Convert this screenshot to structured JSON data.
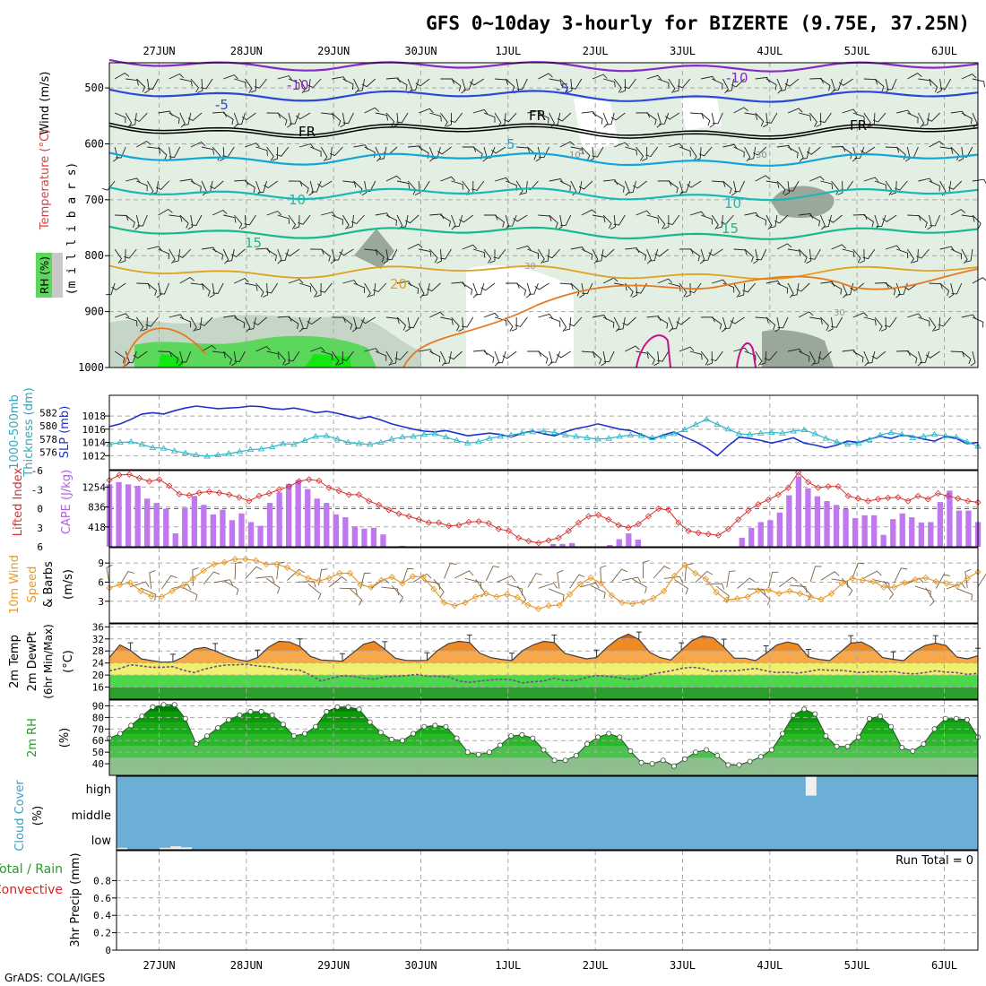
{
  "title": "GFS 0~10day 3-hourly for BIZERTE (9.75E, 37.25N)",
  "footer": "GrADS: COLA/IGES",
  "colors": {
    "grid": "#a8a8a8",
    "rh_light": "#e4efe4",
    "rh_mid": "#c6d6c6",
    "rh_dark": "#9aa89a",
    "rh_green": "#5bd75b",
    "rh_bright": "#14e614",
    "t_violet": "#8a28c8",
    "t_blue": "#2c48d8",
    "t_fr": "#000000",
    "t_cyan": "#12a6d8",
    "t_teal": "#1ab8b4",
    "t_green": "#18b88c",
    "t_gold": "#e0a020",
    "t_orange": "#e87820",
    "t_magenta": "#c8108c",
    "slp": "#1c32d0",
    "thickness": "#30b8c8",
    "lifted": "#d83030",
    "cape": "#c078f0",
    "wind_speed": "#e69a2e",
    "wind_barb": "#7a6040",
    "temp_line": "#404040",
    "dewpt": "#7a4a8a",
    "cloud_bg": "#6baed6",
    "cloud_block": "#f0f0f0"
  },
  "x_axis": {
    "dates": [
      "27JUN",
      "28JUN",
      "29JUN",
      "30JUN",
      "1JUL",
      "2JUL",
      "3JUL",
      "4JUL",
      "5JUL",
      "6JUL"
    ],
    "steps": 80
  },
  "panels": {
    "sounding": {
      "labels": [
        "Wind (m/s)",
        "Temperature (°C)",
        "(m i l l i b a r s)",
        "RH (%)"
      ],
      "y_ticks": [
        "500",
        "600",
        "700",
        "800",
        "900",
        "1000"
      ],
      "contour_labels": [
        "-10",
        "-10",
        "-5",
        "-5",
        "FR",
        "FR",
        "FR",
        "5",
        "5",
        "10",
        "10",
        "15",
        "15",
        "20",
        "10",
        "30",
        "30",
        "30"
      ]
    },
    "slp_thick": {
      "labels": [
        "1000-500mb",
        "Thickness (dm)",
        "SLP (mb)"
      ],
      "thickness_ticks": [
        "582",
        "580",
        "578",
        "576"
      ],
      "slp_ticks": [
        "1018",
        "1016",
        "1014",
        "1012"
      ]
    },
    "cape_li": {
      "labels": [
        "Lifted Index",
        "CAPE (J/kg)"
      ],
      "li_ticks": [
        "-6",
        "-3",
        "0",
        "3",
        "6"
      ],
      "cape_ticks": [
        "1254",
        "836",
        "418"
      ]
    },
    "wind10": {
      "labels": [
        "10m Wind",
        "Speed",
        "& Barbs",
        "(m/s)"
      ],
      "y_ticks": [
        "9",
        "6",
        "3"
      ]
    },
    "temp2m": {
      "labels": [
        "2m Temp",
        "2m DewPt",
        "(6hr Min/Max)",
        "(°C)"
      ],
      "y_ticks": [
        "36",
        "32",
        "28",
        "24",
        "20",
        "16"
      ]
    },
    "rh2m": {
      "labels": [
        "2m RH",
        "(%)"
      ],
      "y_ticks": [
        "90",
        "80",
        "70",
        "60",
        "50",
        "40"
      ]
    },
    "cloud": {
      "labels": [
        "Cloud Cover",
        "(%)"
      ],
      "y_ticks": [
        "high",
        "middle",
        "low"
      ]
    },
    "precip": {
      "labels": [
        "Total / Rain",
        "Convective",
        "3hr Precip (mm)"
      ],
      "y_ticks": [
        "0.8",
        "0.6",
        "0.4",
        "0.2",
        "0"
      ],
      "run_total": "Run Total = 0"
    }
  },
  "chart_data": [
    {
      "type": "line",
      "title": "1000-500mb Thickness (dm) / SLP (mb)",
      "series": [
        {
          "name": "SLP (mb)",
          "unit": "mb",
          "values": [
            1016.4,
            1016.8,
            1017.5,
            1018.3,
            1018.5,
            1018.3,
            1018.8,
            1019.2,
            1019.5,
            1019.3,
            1019.1,
            1019.2,
            1019.3,
            1019.5,
            1019.4,
            1019.1,
            1019.0,
            1019.2,
            1018.9,
            1018.5,
            1018.7,
            1018.4,
            1018.0,
            1017.6,
            1017.9,
            1017.4,
            1016.8,
            1016.4,
            1016.0,
            1015.7,
            1015.6,
            1015.8,
            1015.4,
            1015.0,
            1015.2,
            1015.4,
            1015.2,
            1014.8,
            1015.4,
            1015.7,
            1015.3,
            1015.0,
            1015.6,
            1016.1,
            1016.4,
            1016.8,
            1016.4,
            1016.0,
            1015.8,
            1015.2,
            1014.5,
            1015.1,
            1015.6,
            1014.8,
            1014.1,
            1013.2,
            1012.0,
            1013.5,
            1014.8,
            1014.6,
            1014.3,
            1013.9,
            1014.3,
            1014.7,
            1013.9,
            1013.6,
            1013.2,
            1013.6,
            1014.2,
            1014.0,
            1014.5,
            1014.9,
            1014.6,
            1015.1,
            1014.9,
            1014.5,
            1014.2,
            1014.9,
            1014.6,
            1013.8,
            1014.0
          ]
        },
        {
          "name": "1000-500mb Thickness (dm)",
          "unit": "dm",
          "values": [
            577.2,
            577.5,
            577.6,
            577.2,
            576.7,
            576.6,
            576.2,
            575.9,
            575.6,
            575.4,
            575.6,
            575.8,
            576.1,
            576.4,
            576.5,
            576.8,
            577.3,
            577.2,
            577.8,
            578.4,
            578.5,
            578.0,
            577.5,
            577.3,
            577.2,
            577.5,
            578.0,
            578.3,
            578.4,
            578.7,
            578.8,
            578.3,
            577.8,
            577.4,
            577.6,
            578.1,
            578.4,
            578.6,
            578.9,
            579.1,
            579.2,
            579.0,
            578.6,
            578.4,
            578.2,
            578.0,
            578.1,
            578.4,
            578.6,
            578.5,
            578.2,
            578.4,
            578.8,
            579.4,
            580.2,
            581.0,
            580.2,
            579.5,
            578.8,
            578.7,
            578.9,
            579.0,
            578.9,
            579.2,
            579.4,
            578.8,
            578.1,
            577.6,
            577.2,
            577.4,
            577.9,
            578.6,
            579.0,
            578.7,
            578.2,
            578.4,
            578.7,
            578.5,
            578.3,
            577.6,
            576.9
          ]
        }
      ]
    },
    {
      "type": "bar",
      "title": "Lifted Index / CAPE (J/kg)",
      "series": [
        {
          "name": "CAPE (J/kg)",
          "unit": "J/kg",
          "values": [
            1310,
            1360,
            1310,
            1280,
            1010,
            920,
            800,
            280,
            820,
            1070,
            880,
            680,
            780,
            560,
            700,
            520,
            440,
            920,
            1140,
            1320,
            1400,
            1210,
            1010,
            920,
            680,
            620,
            430,
            380,
            400,
            260,
            0,
            20,
            0,
            0,
            0,
            0,
            0,
            0,
            0,
            0,
            0,
            0,
            0,
            0,
            0,
            0,
            0,
            60,
            60,
            80,
            0,
            0,
            0,
            40,
            160,
            280,
            150,
            0,
            0,
            0,
            0,
            0,
            0,
            0,
            0,
            0,
            0,
            190,
            400,
            520,
            560,
            720,
            1080,
            1480,
            1230,
            1060,
            960,
            880,
            790,
            600,
            660,
            660,
            250,
            580,
            700,
            620,
            510,
            520,
            940,
            1180,
            760,
            760,
            520
          ]
        },
        {
          "name": "Lifted Index",
          "unit": "",
          "values": [
            -4.5,
            -5.3,
            -5.4,
            -4.8,
            -4.3,
            -4.6,
            -3.6,
            -2.3,
            -2.1,
            -2.5,
            -2.7,
            -2.5,
            -2.2,
            -1.8,
            -1.2,
            -2.0,
            -2.4,
            -3.0,
            -3.5,
            -4.3,
            -4.6,
            -4.4,
            -3.3,
            -2.8,
            -2.2,
            -2.2,
            -1.2,
            -0.6,
            0.2,
            0.8,
            1.2,
            1.7,
            2.2,
            2.2,
            2.7,
            2.6,
            2.1,
            2.0,
            2.3,
            3.2,
            3.5,
            4.6,
            5.1,
            5.4,
            5.0,
            4.6,
            3.5,
            2.2,
            1.2,
            1.0,
            1.7,
            2.6,
            3.0,
            2.4,
            1.2,
            0,
            0.2,
            2.2,
            3.5,
            3.8,
            4.0,
            4.2,
            3.2,
            1.7,
            0.3,
            -0.7,
            -1.4,
            -2.2,
            -3.3,
            -5.7,
            -4.2,
            -3.3,
            -3.5,
            -3.5,
            -2.0,
            -1.6,
            -1.2,
            -1.5,
            -1.7,
            -1.8,
            -1.2,
            -2.0,
            -1.5,
            -2.4,
            -2.0,
            -1.6,
            -1.2,
            -1.0
          ]
        }
      ]
    },
    {
      "type": "line",
      "title": "10m Wind Speed & Barbs (m/s)",
      "series": [
        {
          "name": "Speed",
          "unit": "m/s",
          "values": [
            5.1,
            5.6,
            5.9,
            4.6,
            3.8,
            3.7,
            4.6,
            5.4,
            6.6,
            7.8,
            8.8,
            9.1,
            9.6,
            9.6,
            9.4,
            8.8,
            8.8,
            8.3,
            7.4,
            6.6,
            6.2,
            6.6,
            7.4,
            7.4,
            5.6,
            5.2,
            6.3,
            6.8,
            5.8,
            6.9,
            6.8,
            4.9,
            2.8,
            2.3,
            2.8,
            3.7,
            4.2,
            3.7,
            4.1,
            3.6,
            2.4,
            1.8,
            2.3,
            2.4,
            4.1,
            5.7,
            6.7,
            5.8,
            3.9,
            2.8,
            2.6,
            2.9,
            3.5,
            4.6,
            7.0,
            8.7,
            7.4,
            6.5,
            4.4,
            3.2,
            3.4,
            3.7,
            4.7,
            4.8,
            4.2,
            4.6,
            4.2,
            3.7,
            3.3,
            4.2,
            5.8,
            6.6,
            6.3,
            6.1,
            5.2,
            5.2,
            5.9,
            6.4,
            6.7,
            6.1,
            5.8,
            5.4,
            6.6,
            7.6
          ]
        }
      ]
    },
    {
      "type": "area",
      "title": "2m Temp / 2m DewPt (6hr Min/Max) (°C)",
      "series": [
        {
          "name": "2m Temp",
          "unit": "°C",
          "values": [
            25.8,
            30.0,
            28.2,
            25.4,
            24.8,
            24.3,
            24.4,
            26.0,
            28.6,
            29.2,
            28.0,
            26.4,
            25.2,
            24.6,
            25.8,
            29.2,
            31.2,
            31.0,
            29.5,
            26.2,
            25.0,
            24.8,
            24.6,
            27.4,
            30.2,
            31.2,
            28.6,
            25.6,
            24.9,
            24.8,
            24.9,
            28.2,
            30.4,
            31.2,
            30.8,
            27.2,
            25.8,
            25.2,
            24.8,
            28.1,
            30.0,
            31.2,
            30.8,
            27.2,
            26.3,
            25.4,
            25.8,
            29.3,
            32.0,
            33.6,
            31.8,
            27.6,
            25.8,
            25.0,
            28.2,
            31.4,
            33.0,
            32.4,
            29.4,
            25.6,
            25.6,
            24.8,
            27.2,
            30.0,
            31.0,
            30.2,
            26.0,
            25.2,
            24.8,
            27.6,
            30.6,
            31.0,
            29.2,
            25.8,
            25.2,
            24.8,
            27.8,
            29.8,
            30.6,
            29.8,
            26.0,
            25.4,
            26.4
          ]
        },
        {
          "name": "2m DewPt",
          "unit": "°C",
          "values": [
            21.4,
            22.2,
            23.4,
            23.0,
            22.6,
            22.6,
            22.8,
            21.6,
            20.8,
            22.0,
            22.8,
            23.3,
            23.4,
            23.6,
            23.0,
            22.8,
            22.2,
            21.8,
            21.6,
            20.0,
            18.0,
            19.0,
            19.8,
            19.6,
            19.0,
            18.6,
            19.4,
            19.6,
            19.8,
            20.2,
            19.6,
            19.6,
            19.4,
            18.0,
            17.6,
            18.0,
            18.4,
            18.6,
            18.4,
            17.4,
            17.8,
            18.0,
            19.0,
            18.2,
            18.2,
            19.2,
            19.8,
            19.6,
            19.2,
            18.6,
            18.8,
            20.2,
            20.8,
            21.4,
            22.2,
            22.6,
            22.2,
            21.2,
            21.4,
            21.4,
            21.8,
            22.2,
            21.4,
            20.8,
            21.0,
            20.6,
            21.2,
            21.8,
            21.6,
            21.6,
            21.2,
            20.8,
            21.2,
            21.0,
            21.2,
            20.6,
            20.4,
            20.8,
            21.4,
            21.0,
            20.8,
            20.2,
            20.6
          ]
        }
      ]
    },
    {
      "type": "area",
      "title": "2m RH (%)",
      "series": [
        {
          "name": "2m RH",
          "unit": "%",
          "values": [
            62,
            66,
            73,
            81,
            89,
            91,
            91,
            79,
            57,
            64,
            71,
            78,
            82,
            85,
            85,
            82,
            74,
            64,
            66,
            72,
            85,
            89,
            89,
            87,
            76,
            67,
            61,
            60,
            66,
            72,
            73,
            72,
            62,
            50,
            48,
            50,
            56,
            64,
            65,
            62,
            52,
            43,
            43,
            47,
            57,
            63,
            66,
            63,
            51,
            41,
            40,
            43,
            38,
            44,
            50,
            52,
            47,
            39,
            39,
            42,
            46,
            52,
            66,
            82,
            87,
            83,
            64,
            55,
            55,
            63,
            79,
            81,
            72,
            54,
            51,
            57,
            70,
            79,
            79,
            78,
            63
          ]
        }
      ]
    },
    {
      "type": "bar",
      "title": "Cloud Cover (%)",
      "series": [
        {
          "name": "low",
          "unit": "%",
          "values": [
            8,
            0,
            0,
            0,
            8,
            14,
            10,
            0,
            0,
            0,
            0,
            0,
            0,
            0,
            0,
            0,
            0,
            0,
            0,
            0,
            0,
            0,
            0,
            0,
            0,
            0,
            0,
            0,
            0,
            0,
            0,
            0,
            0,
            0,
            0,
            0,
            0,
            0,
            0,
            0,
            0,
            0,
            0,
            0,
            0,
            0,
            0,
            0,
            0,
            0,
            0,
            0,
            0,
            0,
            0,
            0,
            0,
            0,
            0,
            0,
            0,
            0,
            0,
            0,
            0,
            0,
            0,
            0,
            0,
            0,
            0,
            0,
            0,
            0,
            0,
            0,
            0,
            0,
            0,
            0,
            0
          ]
        },
        {
          "name": "high",
          "unit": "%",
          "values": [
            0,
            0,
            0,
            0,
            0,
            0,
            0,
            0,
            0,
            0,
            0,
            0,
            0,
            0,
            0,
            0,
            0,
            0,
            0,
            0,
            0,
            0,
            0,
            0,
            0,
            0,
            0,
            0,
            0,
            0,
            0,
            0,
            0,
            0,
            0,
            0,
            0,
            0,
            0,
            0,
            0,
            0,
            0,
            0,
            0,
            0,
            0,
            0,
            0,
            0,
            0,
            0,
            0,
            0,
            0,
            0,
            0,
            0,
            0,
            0,
            0,
            0,
            0,
            0,
            80,
            0,
            0,
            0,
            0,
            0,
            0,
            0,
            0,
            0,
            0,
            0,
            0,
            0,
            0,
            0,
            0
          ]
        }
      ]
    },
    {
      "type": "bar",
      "title": "3hr Precip (mm)",
      "ylim": [
        0,
        1
      ],
      "series": [
        {
          "name": "Total / Rain",
          "unit": "mm",
          "values": []
        },
        {
          "name": "Convective",
          "unit": "mm",
          "values": []
        }
      ]
    }
  ]
}
